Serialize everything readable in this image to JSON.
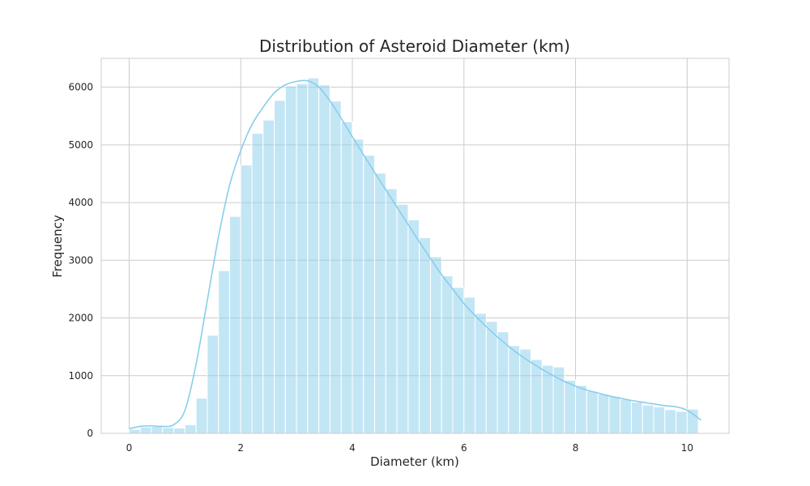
{
  "chart_data": {
    "type": "bar",
    "title": "Distribution of Asteroid Diameter (km)",
    "xlabel": "Diameter (km)",
    "ylabel": "Frequency",
    "xlim": [
      -0.5,
      10.75
    ],
    "ylim": [
      0,
      6500
    ],
    "xticks": [
      "0",
      "2",
      "4",
      "6",
      "8",
      "10"
    ],
    "yticks": [
      "0",
      "1000",
      "2000",
      "3000",
      "4000",
      "5000",
      "6000"
    ],
    "grid": true,
    "legend": "none",
    "colors": {
      "bar": "#87ceeb",
      "bar_edge": "#ffffff",
      "kde": "#87ceeb",
      "grid": "#cccccc",
      "frame": "#cccccc"
    },
    "bin_width": 0.2,
    "bin_starts": [
      0.0,
      0.2,
      0.4,
      0.6,
      0.8,
      1.0,
      1.2,
      1.4,
      1.6,
      1.8,
      2.0,
      2.2,
      2.4,
      2.6,
      2.8,
      3.0,
      3.2,
      3.4,
      3.6,
      3.8,
      4.0,
      4.2,
      4.4,
      4.6,
      4.8,
      5.0,
      5.2,
      5.4,
      5.6,
      5.8,
      6.0,
      6.2,
      6.4,
      6.6,
      6.8,
      7.0,
      7.2,
      7.4,
      7.6,
      7.8,
      8.0,
      8.2,
      8.4,
      8.6,
      8.8,
      9.0,
      9.2,
      9.4,
      9.6,
      9.8,
      10.0
    ],
    "values": [
      70,
      110,
      120,
      100,
      90,
      150,
      610,
      1700,
      2820,
      3760,
      4650,
      5200,
      5430,
      5770,
      6020,
      6060,
      6160,
      6040,
      5760,
      5400,
      5100,
      4820,
      4510,
      4240,
      3970,
      3700,
      3390,
      3060,
      2730,
      2530,
      2360,
      2080,
      1940,
      1760,
      1520,
      1460,
      1280,
      1180,
      1150,
      920,
      830,
      730,
      680,
      640,
      590,
      540,
      490,
      460,
      410,
      380,
      420
    ],
    "kde": {
      "x": [
        0.0,
        0.2,
        0.4,
        0.6,
        0.8,
        1.0,
        1.2,
        1.4,
        1.6,
        1.8,
        2.0,
        2.2,
        2.4,
        2.6,
        2.8,
        3.0,
        3.2,
        3.4,
        3.6,
        3.8,
        4.0,
        4.2,
        4.4,
        4.6,
        4.8,
        5.0,
        5.2,
        5.4,
        5.6,
        5.8,
        6.0,
        6.2,
        6.4,
        6.6,
        6.8,
        7.0,
        7.2,
        7.4,
        7.6,
        7.8,
        8.0,
        8.2,
        8.4,
        8.6,
        8.8,
        9.0,
        9.2,
        9.4,
        9.6,
        9.8,
        10.0,
        10.25
      ],
      "y": [
        80,
        120,
        130,
        120,
        150,
        400,
        1200,
        2300,
        3400,
        4300,
        4900,
        5350,
        5650,
        5900,
        6040,
        6100,
        6110,
        6000,
        5760,
        5460,
        5140,
        4830,
        4520,
        4220,
        3920,
        3620,
        3320,
        3030,
        2750,
        2500,
        2250,
        2040,
        1850,
        1670,
        1510,
        1360,
        1230,
        1110,
        1000,
        900,
        820,
        750,
        700,
        650,
        610,
        570,
        540,
        510,
        480,
        460,
        400,
        230
      ]
    }
  }
}
